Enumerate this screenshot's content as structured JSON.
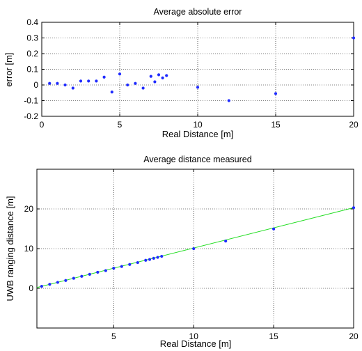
{
  "chart_data": [
    {
      "type": "scatter",
      "title": "Average absolute error",
      "xlabel": "Real Distance [m]",
      "ylabel": "error [m]",
      "xlim": [
        0,
        20
      ],
      "ylim": [
        -0.2,
        0.4
      ],
      "xticks": [
        0,
        5,
        10,
        15,
        20
      ],
      "yticks": [
        -0.2,
        -0.1,
        0,
        0.1,
        0.2,
        0.3,
        0.4
      ],
      "grid": true,
      "point_color": "#1f2bff",
      "series": [
        {
          "x": [
            0.5,
            1.0,
            1.5,
            2.0,
            2.5,
            3.0,
            3.5,
            4.0,
            4.5,
            5.0,
            5.5,
            6.0,
            6.5,
            7.0,
            7.25,
            7.5,
            7.75,
            8.0,
            10.0,
            12.0,
            15.0,
            20.0
          ],
          "y": [
            0.01,
            0.01,
            0.0,
            -0.02,
            0.025,
            0.025,
            0.025,
            0.05,
            -0.045,
            0.07,
            0.0,
            0.01,
            -0.02,
            0.055,
            0.02,
            0.065,
            0.045,
            0.06,
            -0.015,
            -0.1,
            -0.055,
            0.3
          ]
        }
      ]
    },
    {
      "type": "line",
      "title": "Average distance measured",
      "xlabel": "Real Distance [m]",
      "ylabel": "UWB ranging distance [m]",
      "xlim": [
        0.2,
        20
      ],
      "ylim": [
        -10,
        30
      ],
      "xticks": [
        5,
        10,
        15,
        20
      ],
      "yticks": [
        0,
        10,
        20
      ],
      "grid": true,
      "line_color": "#22dd22",
      "point_color": "#1f2bff",
      "series": [
        {
          "x": [
            0.5,
            1.0,
            1.5,
            2.0,
            2.5,
            3.0,
            3.5,
            4.0,
            4.5,
            5.0,
            5.5,
            6.0,
            6.5,
            7.0,
            7.25,
            7.5,
            7.75,
            8.0,
            10.0,
            12.0,
            15.0,
            20.0
          ],
          "y": [
            0.51,
            1.01,
            1.5,
            1.98,
            2.53,
            3.03,
            3.53,
            4.05,
            4.46,
            5.07,
            5.5,
            6.01,
            6.48,
            7.06,
            7.27,
            7.57,
            7.8,
            8.06,
            9.99,
            11.9,
            14.95,
            20.3
          ]
        }
      ]
    }
  ]
}
